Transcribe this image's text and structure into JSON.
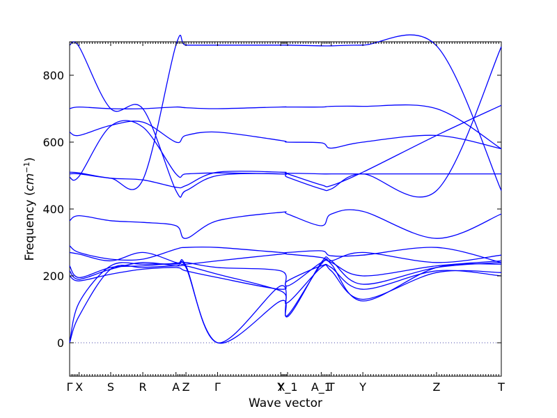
{
  "chart_data": {
    "type": "line",
    "title": "",
    "xlabel": "Wave vector",
    "ylabel": "Frequency (cm⁻¹)",
    "ylabel_main": "Frequency (",
    "ylabel_unit": "cm",
    "ylabel_exp": "−1",
    "ylabel_close": ")",
    "ylim": [
      -100,
      900
    ],
    "yticks": [
      0,
      200,
      400,
      600,
      800
    ],
    "xlim": [
      0,
      8.2
    ],
    "k_points": [
      {
        "label": "Γ",
        "x": 0.0
      },
      {
        "label": "X",
        "x": 0.18
      },
      {
        "label": "S",
        "x": 0.78
      },
      {
        "label": "R",
        "x": 1.39
      },
      {
        "label": "A",
        "x": 2.02
      },
      {
        "label": "Z",
        "x": 2.21
      },
      {
        "label": "Γ",
        "x": 2.81
      },
      {
        "label": "Y",
        "x": 4.01
      },
      {
        "label": "X_1",
        "x": 4.14
      },
      {
        "label": "A_1",
        "x": 4.78
      },
      {
        "label": "T",
        "x": 4.97
      },
      {
        "label": "Y",
        "x": 5.57
      },
      {
        "label": "Z",
        "x": 6.97
      },
      {
        "label": "T",
        "x": 8.2
      }
    ],
    "series": [
      {
        "values": [
          [
            0,
            890
          ],
          [
            0.18,
            885
          ],
          [
            0.78,
            700
          ],
          [
            1.39,
            700
          ],
          [
            2.02,
            455
          ],
          [
            2.21,
            455
          ],
          [
            2.81,
            500
          ],
          [
            4.01,
            505
          ],
          [
            4.14,
            495
          ],
          [
            4.78,
            460
          ],
          [
            4.97,
            460
          ],
          [
            5.57,
            505
          ],
          [
            6.97,
            455
          ],
          [
            8.2,
            885
          ]
        ]
      },
      {
        "values": [
          [
            0,
            505
          ],
          [
            0.18,
            505
          ],
          [
            0.78,
            492
          ],
          [
            1.39,
            487
          ],
          [
            2.02,
            465
          ],
          [
            2.21,
            470
          ],
          [
            2.81,
            510
          ],
          [
            4.01,
            510
          ],
          [
            4.14,
            505
          ],
          [
            4.78,
            472
          ],
          [
            4.97,
            470
          ],
          [
            5.57,
            510
          ],
          [
            6.97,
            620
          ],
          [
            8.2,
            710
          ]
        ]
      },
      {
        "values": [
          [
            0,
            495
          ],
          [
            0.18,
            498
          ],
          [
            0.78,
            648
          ],
          [
            1.39,
            645
          ],
          [
            2.02,
            505
          ],
          [
            2.21,
            505
          ],
          [
            2.81,
            508
          ],
          [
            4.01,
            505
          ],
          [
            4.14,
            507
          ],
          [
            4.78,
            505
          ],
          [
            4.97,
            505
          ],
          [
            5.57,
            505
          ],
          [
            6.97,
            505
          ],
          [
            8.2,
            505
          ]
        ]
      },
      {
        "values": [
          [
            0,
            510
          ],
          [
            0.18,
            508
          ],
          [
            0.78,
            492
          ],
          [
            1.39,
            487
          ],
          [
            2.02,
            890
          ],
          [
            2.21,
            890
          ],
          [
            2.81,
            890
          ],
          [
            4.01,
            890
          ],
          [
            4.14,
            890
          ],
          [
            4.78,
            888
          ],
          [
            4.97,
            888
          ],
          [
            5.57,
            890
          ],
          [
            6.97,
            888
          ],
          [
            8.2,
            455
          ]
        ]
      },
      {
        "values": [
          [
            0,
            700
          ],
          [
            0.18,
            705
          ],
          [
            0.78,
            700
          ],
          [
            1.39,
            700
          ],
          [
            2.02,
            705
          ],
          [
            2.21,
            703
          ],
          [
            2.81,
            700
          ],
          [
            4.01,
            705
          ],
          [
            4.14,
            705
          ],
          [
            4.78,
            705
          ],
          [
            4.97,
            707
          ],
          [
            5.57,
            707
          ],
          [
            6.97,
            700
          ],
          [
            8.2,
            580
          ]
        ]
      },
      {
        "values": [
          [
            0,
            630
          ],
          [
            0.18,
            620
          ],
          [
            0.78,
            650
          ],
          [
            1.39,
            660
          ],
          [
            2.02,
            600
          ],
          [
            2.21,
            620
          ],
          [
            2.81,
            630
          ],
          [
            4.01,
            605
          ],
          [
            4.14,
            600
          ],
          [
            4.78,
            598
          ],
          [
            4.97,
            582
          ],
          [
            5.57,
            600
          ],
          [
            6.97,
            620
          ],
          [
            8.2,
            580
          ]
        ]
      },
      {
        "values": [
          [
            0,
            365
          ],
          [
            0.18,
            380
          ],
          [
            0.78,
            365
          ],
          [
            1.39,
            360
          ],
          [
            2.02,
            350
          ],
          [
            2.21,
            312
          ],
          [
            2.81,
            365
          ],
          [
            4.01,
            390
          ],
          [
            4.14,
            385
          ],
          [
            4.78,
            350
          ],
          [
            4.97,
            385
          ],
          [
            5.57,
            393
          ],
          [
            6.97,
            312
          ],
          [
            8.2,
            385
          ]
        ]
      },
      {
        "values": [
          [
            0,
            290
          ],
          [
            0.18,
            270
          ],
          [
            0.78,
            250
          ],
          [
            1.39,
            250
          ],
          [
            2.02,
            280
          ],
          [
            2.21,
            285
          ],
          [
            2.81,
            285
          ],
          [
            4.01,
            270
          ],
          [
            4.14,
            270
          ],
          [
            4.78,
            275
          ],
          [
            4.97,
            260
          ],
          [
            5.57,
            262
          ],
          [
            6.97,
            285
          ],
          [
            8.2,
            240
          ]
        ]
      },
      {
        "values": [
          [
            0,
            270
          ],
          [
            0.18,
            265
          ],
          [
            0.78,
            245
          ],
          [
            1.39,
            270
          ],
          [
            2.02,
            240
          ],
          [
            2.21,
            235
          ],
          [
            2.81,
            245
          ],
          [
            4.01,
            265
          ],
          [
            4.14,
            265
          ],
          [
            4.78,
            255
          ],
          [
            4.97,
            245
          ],
          [
            5.57,
            270
          ],
          [
            6.97,
            240
          ],
          [
            8.2,
            262
          ]
        ]
      },
      {
        "values": [
          [
            0,
            0
          ],
          [
            0.18,
            120
          ],
          [
            0.78,
            230
          ],
          [
            1.39,
            235
          ],
          [
            2.02,
            235
          ],
          [
            2.21,
            230
          ],
          [
            2.81,
            0
          ],
          [
            4.01,
            170
          ],
          [
            4.14,
            78
          ],
          [
            4.78,
            240
          ],
          [
            4.97,
            245
          ],
          [
            5.57,
            175
          ],
          [
            6.97,
            225
          ],
          [
            8.2,
            240
          ]
        ]
      },
      {
        "values": [
          [
            0,
            0
          ],
          [
            0.18,
            80
          ],
          [
            0.78,
            220
          ],
          [
            1.39,
            225
          ],
          [
            2.02,
            230
          ],
          [
            2.21,
            225
          ],
          [
            2.81,
            0
          ],
          [
            4.01,
            125
          ],
          [
            4.14,
            82
          ],
          [
            4.78,
            235
          ],
          [
            4.97,
            235
          ],
          [
            5.57,
            125
          ],
          [
            6.97,
            225
          ],
          [
            8.2,
            235
          ]
        ]
      },
      {
        "values": [
          [
            0,
            200
          ],
          [
            0.18,
            185
          ],
          [
            0.78,
            205
          ],
          [
            1.39,
            220
          ],
          [
            2.02,
            225
          ],
          [
            2.21,
            215
          ],
          [
            2.81,
            195
          ],
          [
            4.01,
            160
          ],
          [
            4.14,
            185
          ],
          [
            4.78,
            230
          ],
          [
            4.97,
            225
          ],
          [
            5.57,
            160
          ],
          [
            6.97,
            215
          ],
          [
            8.2,
            200
          ]
        ]
      },
      {
        "values": [
          [
            0,
            215
          ],
          [
            0.18,
            190
          ],
          [
            0.78,
            220
          ],
          [
            1.39,
            240
          ],
          [
            2.02,
            230
          ],
          [
            2.21,
            230
          ],
          [
            2.81,
            205
          ],
          [
            4.01,
            155
          ],
          [
            4.14,
            120
          ],
          [
            4.78,
            225
          ],
          [
            4.97,
            215
          ],
          [
            5.57,
            130
          ],
          [
            6.97,
            210
          ],
          [
            8.2,
            210
          ]
        ]
      },
      {
        "values": [
          [
            0,
            230
          ],
          [
            0.18,
            195
          ],
          [
            0.78,
            225
          ],
          [
            1.39,
            230
          ],
          [
            2.02,
            238
          ],
          [
            2.21,
            240
          ],
          [
            2.81,
            225
          ],
          [
            4.01,
            215
          ],
          [
            4.14,
            170
          ],
          [
            4.78,
            240
          ],
          [
            4.97,
            240
          ],
          [
            5.57,
            200
          ],
          [
            6.97,
            230
          ],
          [
            8.2,
            245
          ]
        ]
      }
    ],
    "color": "#0000ff",
    "zero_line_color": "#4444aa",
    "grid": false
  }
}
